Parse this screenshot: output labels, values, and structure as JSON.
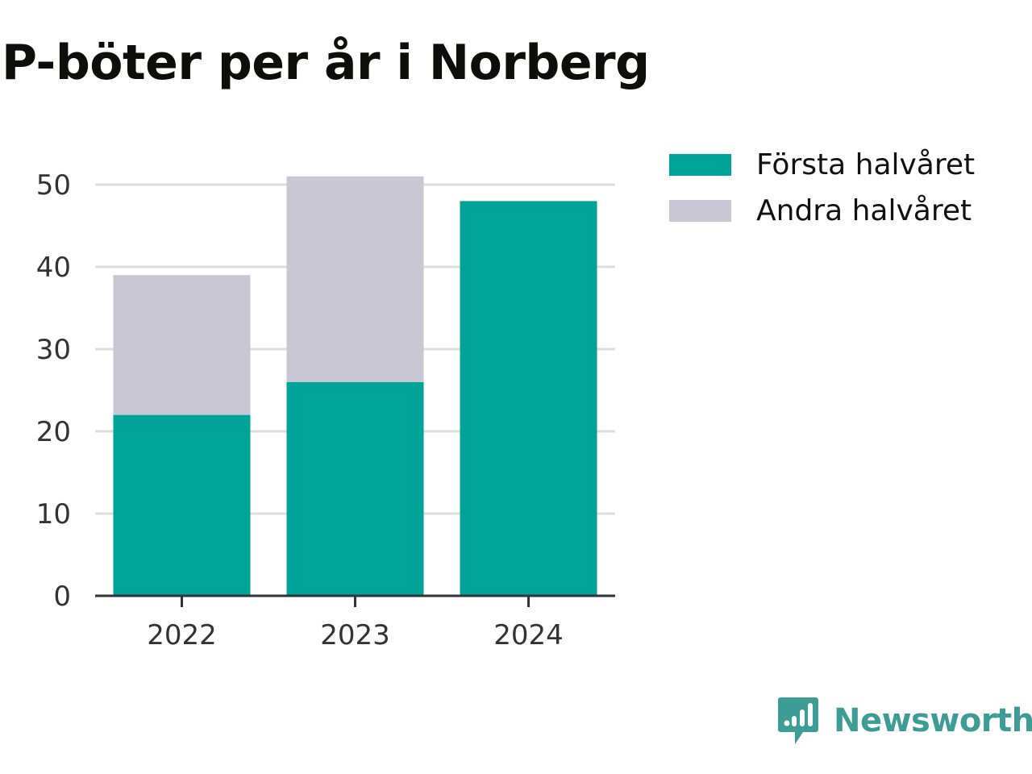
{
  "title": "P-böter per år i Norberg",
  "chart_data": {
    "type": "bar",
    "stacked": true,
    "title": "P-böter per år i Norberg",
    "xlabel": "",
    "ylabel": "",
    "categories": [
      "2022",
      "2023",
      "2024"
    ],
    "series": [
      {
        "name": "Första halvåret",
        "values": [
          22,
          26,
          48
        ],
        "color": "#00a398"
      },
      {
        "name": "Andra halvåret",
        "values": [
          17,
          25,
          0
        ],
        "color": "#c8c7d3"
      }
    ],
    "ylim": [
      0,
      50
    ],
    "yticks": [
      0,
      10,
      20,
      30,
      40,
      50
    ],
    "grid": true,
    "legend_position": "top-right"
  },
  "legend": [
    {
      "label": "Första halvåret",
      "color": "#00a398"
    },
    {
      "label": "Andra halvåret",
      "color": "#c8c7d3"
    }
  ],
  "brand": {
    "name": "Newsworthy",
    "icon": "newsworthy-logo-icon",
    "color": "#3d9c95"
  }
}
